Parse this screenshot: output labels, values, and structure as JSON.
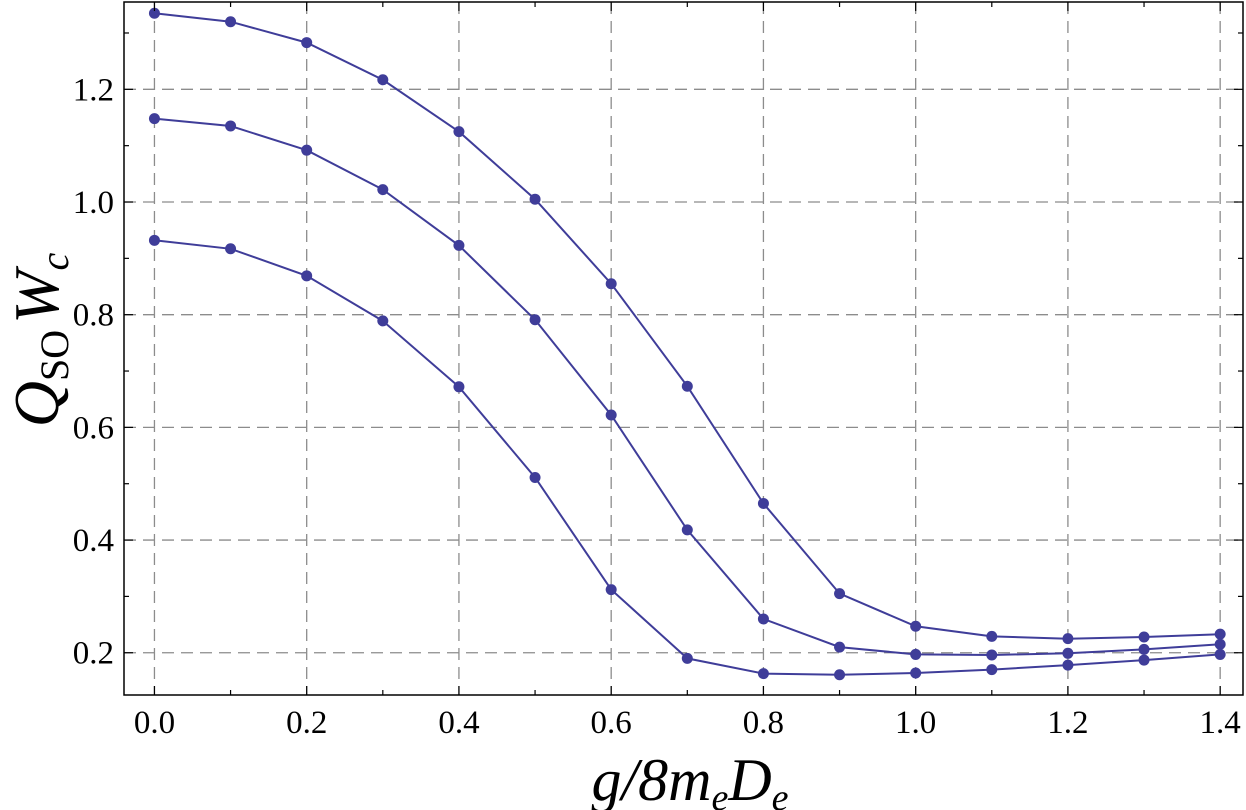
{
  "chart_data": {
    "type": "line",
    "title": "",
    "xlabel": {
      "main": "g/8m",
      "sub1": "e",
      "mid": "D",
      "sub2": "e"
    },
    "ylabel": {
      "main": "Q",
      "sub": "SO",
      "tail": "W",
      "tail_sub": "c"
    },
    "xlim": [
      -0.04,
      1.43
    ],
    "ylim": [
      0.125,
      1.355
    ],
    "x_ticks": [
      0.0,
      0.1,
      0.2,
      0.3,
      0.4,
      0.5,
      0.6,
      0.7,
      0.8,
      0.9,
      1.0,
      1.1,
      1.2,
      1.3,
      1.4
    ],
    "x_tick_labels": [
      "0.0",
      "0.2",
      "0.4",
      "0.6",
      "0.8",
      "1.0",
      "1.2",
      "1.4"
    ],
    "x_tick_label_values": [
      0.0,
      0.2,
      0.4,
      0.6,
      0.8,
      1.0,
      1.2,
      1.4
    ],
    "y_ticks": [
      0.2,
      0.3,
      0.4,
      0.5,
      0.6,
      0.7,
      0.8,
      0.9,
      1.0,
      1.1,
      1.2,
      1.3
    ],
    "y_tick_labels": [
      "0.2",
      "0.4",
      "0.6",
      "0.8",
      "1.0",
      "1.2"
    ],
    "y_tick_label_values": [
      0.2,
      0.4,
      0.6,
      0.8,
      1.0,
      1.2
    ],
    "grid": true,
    "x": [
      0.0,
      0.1,
      0.2,
      0.3,
      0.4,
      0.5,
      0.6,
      0.7,
      0.8,
      0.9,
      1.0,
      1.1,
      1.2,
      1.3,
      1.4
    ],
    "series": [
      {
        "color": "#3f3d99",
        "values": [
          1.335,
          1.32,
          1.283,
          1.217,
          1.125,
          1.005,
          0.855,
          0.673,
          0.465,
          0.305,
          0.247,
          0.229,
          0.225,
          0.228,
          0.233
        ]
      },
      {
        "color": "#3f3d99",
        "values": [
          1.148,
          1.135,
          1.092,
          1.022,
          0.923,
          0.791,
          0.622,
          0.418,
          0.26,
          0.21,
          0.197,
          0.196,
          0.199,
          0.206,
          0.215
        ]
      },
      {
        "color": "#3f3d99",
        "values": [
          0.932,
          0.917,
          0.869,
          0.789,
          0.672,
          0.511,
          0.312,
          0.19,
          0.163,
          0.161,
          0.164,
          0.17,
          0.178,
          0.187,
          0.197
        ]
      }
    ]
  }
}
